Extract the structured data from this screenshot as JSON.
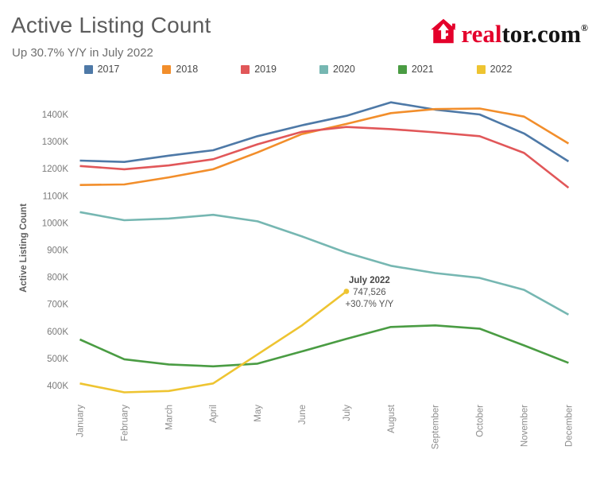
{
  "header": {
    "title": "Active Listing Count",
    "subtitle": "Up 30.7% Y/Y in July 2022"
  },
  "logo": {
    "word_red": "real",
    "word_black": "tor.com",
    "trademark": "®",
    "brand_red": "#e4002b",
    "brand_black": "#141414"
  },
  "chart_data": {
    "type": "line",
    "title": "Active Listing Count",
    "ylabel": "Active Listing Count",
    "xlabel": "",
    "grid": false,
    "legend_position": "top",
    "x": [
      "January",
      "February",
      "March",
      "April",
      "May",
      "June",
      "July",
      "August",
      "September",
      "October",
      "November",
      "December"
    ],
    "yticks": [
      {
        "value": 1400000,
        "label": "1400K"
      },
      {
        "value": 1300000,
        "label": "1300K"
      },
      {
        "value": 1200000,
        "label": "1200K"
      },
      {
        "value": 1100000,
        "label": "1100K"
      },
      {
        "value": 1000000,
        "label": "1000K"
      },
      {
        "value": 900000,
        "label": "900K"
      },
      {
        "value": 800000,
        "label": "800K"
      },
      {
        "value": 700000,
        "label": "700K"
      },
      {
        "value": 600000,
        "label": "600K"
      },
      {
        "value": 500000,
        "label": "500K"
      },
      {
        "value": 400000,
        "label": "400K"
      }
    ],
    "ylim": [
      350000,
      1480000
    ],
    "series": [
      {
        "name": "2017",
        "color": "#4e79a7",
        "values": [
          1230000,
          1225000,
          1248000,
          1268000,
          1320000,
          1360000,
          1395000,
          1445000,
          1418000,
          1400000,
          1330000,
          1227000
        ]
      },
      {
        "name": "2018",
        "color": "#f28e2b",
        "values": [
          1140000,
          1142000,
          1168000,
          1198000,
          1260000,
          1328000,
          1365000,
          1405000,
          1420000,
          1422000,
          1392000,
          1293000
        ]
      },
      {
        "name": "2019",
        "color": "#e15759",
        "values": [
          1210000,
          1198000,
          1212000,
          1235000,
          1290000,
          1336000,
          1354000,
          1346000,
          1334000,
          1320000,
          1258000,
          1130000
        ]
      },
      {
        "name": "2020",
        "color": "#76b7b2",
        "values": [
          1040000,
          1010000,
          1016000,
          1030000,
          1006000,
          950000,
          890000,
          842000,
          815000,
          797000,
          753000,
          662000
        ]
      },
      {
        "name": "2021",
        "color": "#4a9c43",
        "values": [
          570000,
          497000,
          478000,
          471000,
          481000,
          526000,
          572000,
          616000,
          622000,
          610000,
          548000,
          484000
        ]
      },
      {
        "name": "2022",
        "color": "#eec431",
        "end_marker": true,
        "values": [
          408000,
          375000,
          380000,
          408000,
          515000,
          622000,
          747526
        ]
      }
    ],
    "annotation": {
      "title": "July 2022",
      "value": "747,526",
      "change": "+30.7% Y/Y",
      "series": "2022",
      "month": "July",
      "point_value": 747526
    }
  }
}
